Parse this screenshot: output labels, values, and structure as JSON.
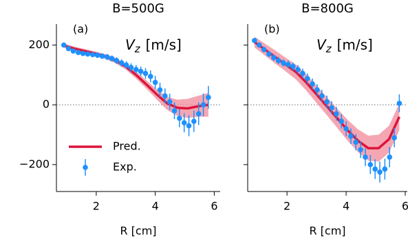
{
  "chart_data": [
    {
      "type": "line",
      "title": "B=500G",
      "panel_label": "(a)",
      "annotation": {
        "symbol": "V",
        "subscript": "z",
        "unit": "[m/s]"
      },
      "xlabel": "R [cm]",
      "xlim": [
        0.65,
        6.2
      ],
      "xticks": [
        2,
        4,
        6
      ],
      "ylim": [
        -290,
        270
      ],
      "yticks": [
        {
          "value": -200,
          "label": "−200"
        },
        0,
        200
      ],
      "show_ytick_labels": true,
      "reference_line": 0,
      "legend": "lower left",
      "series": [
        {
          "name": "Pred.",
          "kind": "band-line",
          "color": "#dc143c",
          "band_color": "#f08a9a",
          "x": [
            0.9,
            1.25,
            1.6,
            1.95,
            2.3,
            2.65,
            3.0,
            3.35,
            3.7,
            4.05,
            4.4,
            4.75,
            5.1,
            5.45,
            5.8
          ],
          "values": [
            198,
            188,
            180,
            172,
            162,
            148,
            128,
            100,
            68,
            35,
            5,
            -10,
            -12,
            -5,
            0
          ],
          "upper": [
            205,
            195,
            187,
            179,
            170,
            157,
            138,
            112,
            82,
            52,
            27,
            17,
            20,
            30,
            40
          ],
          "lower": [
            191,
            181,
            173,
            165,
            154,
            139,
            118,
            88,
            54,
            18,
            -17,
            -37,
            -44,
            -40,
            -40
          ]
        },
        {
          "name": "Exp.",
          "kind": "errorbar",
          "color": "#1e90ff",
          "x": [
            0.9,
            1.06,
            1.22,
            1.39,
            1.55,
            1.71,
            1.88,
            2.04,
            2.2,
            2.37,
            2.53,
            2.69,
            2.86,
            3.02,
            3.18,
            3.35,
            3.51,
            3.67,
            3.84,
            4.0,
            4.16,
            4.33,
            4.49,
            4.65,
            4.82,
            4.98,
            5.14,
            5.31,
            5.47,
            5.63,
            5.8
          ],
          "values": [
            200,
            188,
            180,
            175,
            172,
            170,
            168,
            166,
            163,
            160,
            155,
            148,
            140,
            133,
            125,
            118,
            112,
            105,
            95,
            75,
            50,
            30,
            10,
            -20,
            -45,
            -60,
            -70,
            -55,
            -30,
            0,
            25
          ],
          "errors": [
            5,
            6,
            6,
            7,
            7,
            8,
            8,
            9,
            9,
            10,
            10,
            11,
            12,
            13,
            14,
            15,
            16,
            18,
            20,
            22,
            24,
            25,
            27,
            28,
            30,
            32,
            35,
            36,
            38,
            38,
            38
          ]
        }
      ]
    },
    {
      "type": "line",
      "title": "B=800G",
      "panel_label": "(b)",
      "annotation": {
        "symbol": "V",
        "subscript": "z",
        "unit": "[m/s]"
      },
      "xlabel": "R [cm]",
      "xlim": [
        0.67,
        6.07
      ],
      "xticks": [
        2,
        4,
        6
      ],
      "ylim": [
        -290,
        270
      ],
      "yticks": [
        -200,
        0,
        200
      ],
      "show_ytick_labels": false,
      "reference_line": 0,
      "series": [
        {
          "kind": "band-line",
          "color": "#dc143c",
          "band_color": "#f08a9a",
          "x": [
            0.9,
            1.25,
            1.6,
            1.95,
            2.3,
            2.65,
            3.0,
            3.35,
            3.7,
            4.05,
            4.4,
            4.75,
            5.1,
            5.45,
            5.8
          ],
          "values": [
            210,
            185,
            160,
            135,
            110,
            75,
            35,
            -5,
            -45,
            -85,
            -120,
            -145,
            -145,
            -115,
            -40
          ],
          "upper": [
            228,
            205,
            182,
            158,
            135,
            102,
            64,
            25,
            -13,
            -50,
            -82,
            -103,
            -100,
            -70,
            5
          ],
          "lower": [
            192,
            165,
            138,
            112,
            85,
            48,
            6,
            -35,
            -77,
            -120,
            -158,
            -187,
            -190,
            -160,
            -85
          ]
        },
        {
          "kind": "errorbar",
          "color": "#1e90ff",
          "x": [
            0.9,
            1.06,
            1.22,
            1.39,
            1.55,
            1.71,
            1.88,
            2.04,
            2.2,
            2.37,
            2.53,
            2.69,
            2.86,
            3.02,
            3.18,
            3.35,
            3.51,
            3.67,
            3.84,
            4.0,
            4.16,
            4.33,
            4.49,
            4.65,
            4.82,
            4.98,
            5.14,
            5.31,
            5.47,
            5.63,
            5.8
          ],
          "values": [
            215,
            200,
            185,
            170,
            158,
            148,
            140,
            135,
            128,
            118,
            105,
            88,
            70,
            50,
            30,
            10,
            -10,
            -30,
            -55,
            -80,
            -105,
            -125,
            -150,
            -175,
            -200,
            -215,
            -225,
            -215,
            -175,
            -110,
            5
          ],
          "errors": [
            8,
            9,
            10,
            10,
            11,
            12,
            12,
            13,
            14,
            15,
            16,
            17,
            18,
            19,
            20,
            21,
            22,
            23,
            24,
            25,
            26,
            27,
            28,
            30,
            32,
            33,
            35,
            35,
            34,
            32,
            30
          ]
        }
      ]
    }
  ]
}
